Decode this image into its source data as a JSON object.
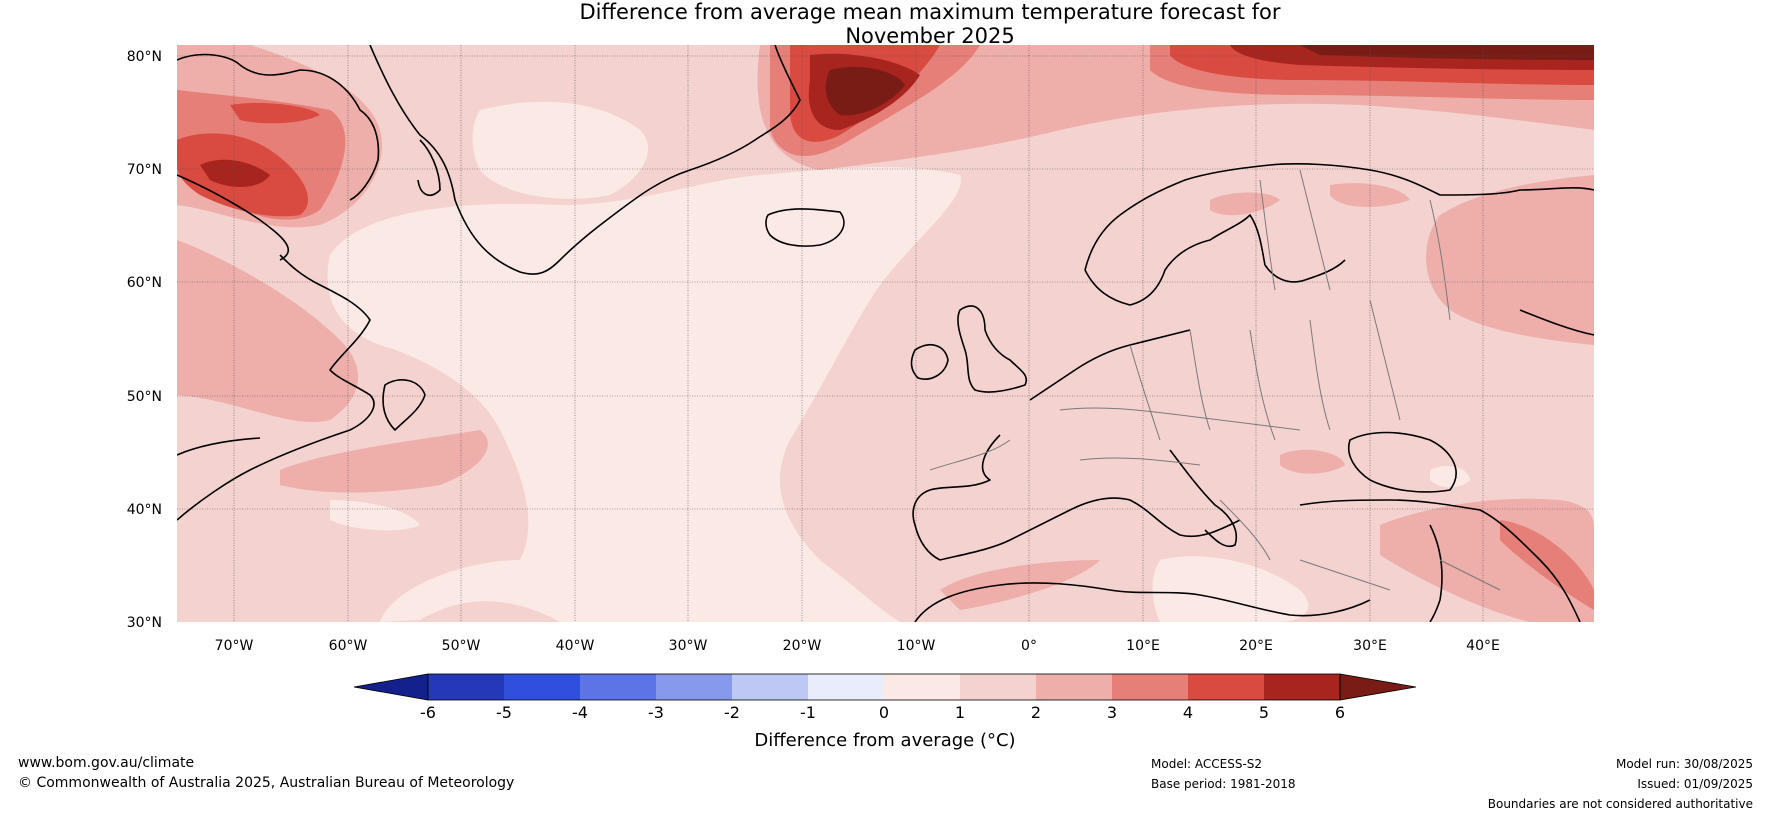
{
  "title_line1": "Difference from average mean maximum temperature forecast for",
  "title_line2": "November 2025",
  "latitude_labels": [
    "80°N",
    "70°N",
    "60°N",
    "50°N",
    "40°N",
    "30°N"
  ],
  "longitude_labels": [
    "70°W",
    "60°W",
    "50°W",
    "40°W",
    "30°W",
    "20°W",
    "10°W",
    "0°",
    "10°E",
    "20°E",
    "30°E",
    "40°E"
  ],
  "colorbar": {
    "title": "Difference from average (°C)",
    "ticks": [
      "-6",
      "-5",
      "-4",
      "-3",
      "-2",
      "-1",
      "0",
      "1",
      "2",
      "3",
      "4",
      "5",
      "6"
    ],
    "colors": [
      "#14208c",
      "#2438b8",
      "#2f4fdc",
      "#5c74e6",
      "#8799ec",
      "#bec8f4",
      "#e8ecfb",
      "#fbe9e6",
      "#f4d2d0",
      "#eeaeaa",
      "#e57f78",
      "#d94a40",
      "#a8241e",
      "#7a1c16"
    ]
  },
  "footer": {
    "website": "www.bom.gov.au/climate",
    "copyright": "© Commonwealth of Australia 2025, Australian Bureau of Meteorology",
    "model": "Model: ACCESS-S2",
    "base_period": "Base period: 1981-2018",
    "model_run": "Model run: 30/08/2025",
    "issued": "Issued: 01/09/2025",
    "disclaimer": "Boundaries are not considered authoritative"
  }
}
